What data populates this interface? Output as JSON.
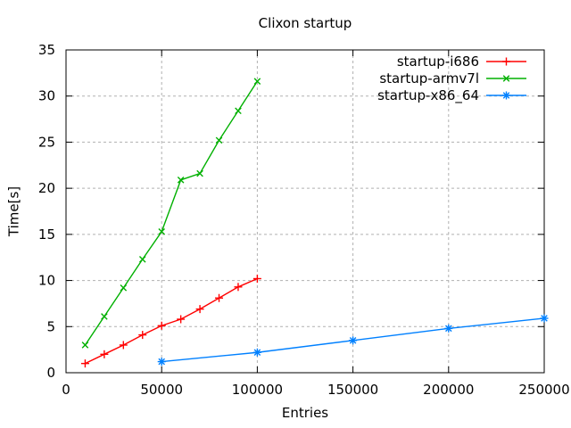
{
  "chart_data": {
    "type": "line",
    "title": "Clixon startup",
    "xlabel": "Entries",
    "ylabel": "Time[s]",
    "xlim": [
      0,
      250000
    ],
    "ylim": [
      0,
      35
    ],
    "xticks": [
      0,
      50000,
      100000,
      150000,
      200000,
      250000
    ],
    "yticks": [
      0,
      5,
      10,
      15,
      20,
      25,
      30,
      35
    ],
    "grid": true,
    "legend_position": "top-right-inside",
    "background_color": "#ffffff",
    "border_color": "#000000",
    "grid_color": "#b0b0b0",
    "series": [
      {
        "name": "startup-i686",
        "color": "#ff0000",
        "marker": "plus",
        "x": [
          10000,
          20000,
          30000,
          40000,
          50000,
          60000,
          70000,
          80000,
          90000,
          100000
        ],
        "y": [
          1.0,
          2.0,
          3.0,
          4.1,
          5.1,
          5.8,
          6.9,
          8.1,
          9.3,
          10.2
        ]
      },
      {
        "name": "startup-armv7l",
        "color": "#00b000",
        "marker": "cross",
        "x": [
          10000,
          20000,
          30000,
          40000,
          50000,
          60000,
          70000,
          80000,
          90000,
          100000
        ],
        "y": [
          3.0,
          6.1,
          9.2,
          12.3,
          15.3,
          20.9,
          21.6,
          25.2,
          28.4,
          31.6
        ]
      },
      {
        "name": "startup-x86_64",
        "color": "#0080ff",
        "marker": "asterisk",
        "x": [
          50000,
          100000,
          150000,
          200000,
          250000
        ],
        "y": [
          1.2,
          2.2,
          3.5,
          4.8,
          5.9
        ]
      }
    ]
  }
}
